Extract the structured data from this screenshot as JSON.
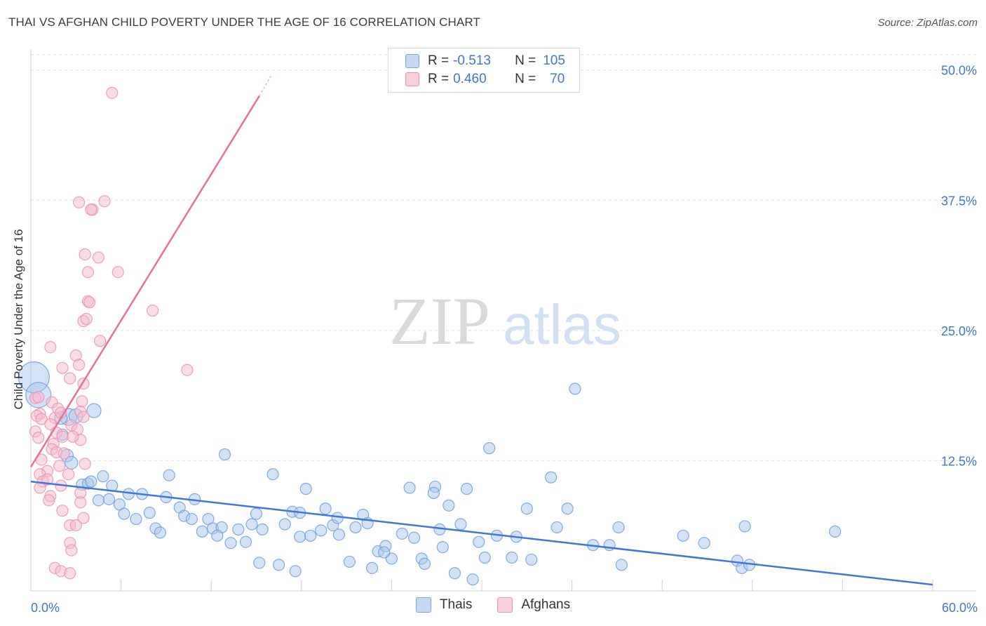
{
  "title": "THAI VS AFGHAN CHILD POVERTY UNDER THE AGE OF 16 CORRELATION CHART",
  "source": "Source: ZipAtlas.com",
  "watermark": {
    "zip": "ZIP",
    "atlas": "atlas"
  },
  "legend": {
    "rows": [
      {
        "r_label": "R =",
        "r_value": "-0.513",
        "n_label": "N =",
        "n_value": "105",
        "color": "#a9c6ee"
      },
      {
        "r_label": "R =",
        "r_value": "0.460",
        "n_label": "N =",
        "n_value": "70",
        "color": "#f6b9cd"
      }
    ]
  },
  "bottom_legend": [
    {
      "label": "Thais",
      "color": "#a9c6ee"
    },
    {
      "label": "Afghans",
      "color": "#f6b9cd"
    }
  ],
  "chart_data": {
    "type": "scatter",
    "title": "THAI VS AFGHAN CHILD POVERTY UNDER THE AGE OF 16 CORRELATION CHART",
    "xlabel": "",
    "ylabel": "Child Poverty Under the Age of 16",
    "xlim": [
      0,
      60
    ],
    "ylim": [
      0,
      52
    ],
    "x_tick_labels": [
      "0.0%",
      "60.0%"
    ],
    "y_ticks": [
      12.5,
      25.0,
      37.5,
      50.0
    ],
    "y_tick_labels": [
      "12.5%",
      "25.0%",
      "37.5%",
      "50.0%"
    ],
    "grid": true,
    "colors": {
      "thais": "#6a9fe0",
      "thais_fill": "#a9c6ee",
      "thais_line": "#3f78d6",
      "afghans": "#ee8fb0",
      "afghans_fill": "#f6b9cd",
      "afghans_line": "#e8709a",
      "axis_label": "#3f78c8"
    },
    "series": [
      {
        "name": "Thais",
        "trendline": [
          [
            0,
            10.5
          ],
          [
            60,
            0.6
          ]
        ],
        "points": [
          [
            0.2,
            20.5,
            22
          ],
          [
            0.5,
            18.8,
            18
          ],
          [
            2.5,
            16.7,
            12
          ],
          [
            3,
            16.8,
            10
          ],
          [
            2,
            16.6,
            9
          ],
          [
            4.2,
            17.3,
            10
          ],
          [
            2.1,
            15.0,
            8
          ],
          [
            2.4,
            13.0,
            9
          ],
          [
            2.7,
            12.3,
            9
          ],
          [
            3.4,
            10.2,
            8
          ],
          [
            3.8,
            10.3,
            8
          ],
          [
            4.0,
            10.5,
            8
          ],
          [
            4.8,
            11.0,
            8
          ],
          [
            5.4,
            10.1,
            8
          ],
          [
            4.5,
            8.7,
            8
          ],
          [
            5.2,
            8.8,
            8
          ],
          [
            5.9,
            8.3,
            8
          ],
          [
            6.5,
            9.3,
            8
          ],
          [
            7.4,
            9.3,
            8
          ],
          [
            6.2,
            7.4,
            8
          ],
          [
            7.0,
            6.9,
            8
          ],
          [
            7.9,
            7.5,
            8
          ],
          [
            8.3,
            6.0,
            8
          ],
          [
            8.6,
            5.6,
            8
          ],
          [
            9.2,
            11.1,
            8
          ],
          [
            9.0,
            9.0,
            8
          ],
          [
            9.9,
            8.0,
            8
          ],
          [
            10.2,
            7.2,
            8
          ],
          [
            10.7,
            6.9,
            8
          ],
          [
            10.9,
            8.8,
            8
          ],
          [
            11.4,
            5.7,
            8
          ],
          [
            11.8,
            6.9,
            8
          ],
          [
            12.1,
            6.0,
            8
          ],
          [
            12.7,
            6.1,
            8
          ],
          [
            12.4,
            5.3,
            8
          ],
          [
            12.9,
            13.1,
            8
          ],
          [
            13.3,
            4.6,
            8
          ],
          [
            13.8,
            5.9,
            8
          ],
          [
            14.3,
            4.7,
            8
          ],
          [
            14.7,
            6.4,
            8
          ],
          [
            15.0,
            7.4,
            8
          ],
          [
            15.4,
            5.9,
            8
          ],
          [
            15.2,
            2.7,
            8
          ],
          [
            16.1,
            11.2,
            8
          ],
          [
            16.5,
            2.5,
            8
          ],
          [
            16.9,
            6.4,
            8
          ],
          [
            17.4,
            7.6,
            8
          ],
          [
            17.9,
            7.5,
            8
          ],
          [
            17.6,
            1.9,
            8
          ],
          [
            17.9,
            5.2,
            8
          ],
          [
            18.3,
            9.8,
            8
          ],
          [
            18.6,
            5.3,
            8
          ],
          [
            19.3,
            5.8,
            8
          ],
          [
            19.6,
            7.9,
            8
          ],
          [
            20.1,
            6.3,
            8
          ],
          [
            20.5,
            5.4,
            8
          ],
          [
            20.4,
            7.0,
            8
          ],
          [
            21.2,
            2.8,
            8
          ],
          [
            21.6,
            6.1,
            8
          ],
          [
            22.1,
            7.3,
            8
          ],
          [
            22.4,
            6.5,
            8
          ],
          [
            22.7,
            2.2,
            8
          ],
          [
            23.1,
            3.8,
            8
          ],
          [
            23.6,
            4.3,
            8
          ],
          [
            24.0,
            3.1,
            8
          ],
          [
            23.5,
            3.7,
            8
          ],
          [
            24.7,
            5.5,
            8
          ],
          [
            25.2,
            9.9,
            8
          ],
          [
            25.5,
            5.1,
            8
          ],
          [
            26.0,
            3.1,
            8
          ],
          [
            26.2,
            2.6,
            8
          ],
          [
            26.9,
            10.0,
            8
          ],
          [
            27.2,
            5.9,
            8
          ],
          [
            27.4,
            4.2,
            8
          ],
          [
            26.8,
            9.4,
            8
          ],
          [
            27.8,
            8.2,
            8
          ],
          [
            28.2,
            1.7,
            8
          ],
          [
            28.6,
            6.4,
            8
          ],
          [
            29.0,
            9.8,
            8
          ],
          [
            29.4,
            1.1,
            8
          ],
          [
            29.8,
            4.7,
            8
          ],
          [
            30.2,
            3.2,
            8
          ],
          [
            30.5,
            13.7,
            8
          ],
          [
            31.0,
            5.3,
            8
          ],
          [
            32.0,
            3.2,
            8
          ],
          [
            32.3,
            5.2,
            8
          ],
          [
            33.3,
            3.0,
            8
          ],
          [
            33.0,
            7.9,
            8
          ],
          [
            34.6,
            10.9,
            8
          ],
          [
            35.0,
            6.1,
            8
          ],
          [
            35.7,
            7.9,
            8
          ],
          [
            36.2,
            19.4,
            8
          ],
          [
            37.4,
            4.4,
            8
          ],
          [
            38.5,
            4.4,
            8
          ],
          [
            39.1,
            6.1,
            8
          ],
          [
            39.3,
            2.5,
            8
          ],
          [
            43.4,
            5.3,
            8
          ],
          [
            44.8,
            4.6,
            8
          ],
          [
            47.0,
            2.9,
            8
          ],
          [
            47.3,
            2.2,
            8
          ],
          [
            47.5,
            6.2,
            8
          ],
          [
            47.8,
            2.5,
            8
          ],
          [
            53.5,
            5.7,
            8
          ],
          [
            30.0,
            4.0,
            0
          ]
        ]
      },
      {
        "name": "Afghans",
        "trendline": [
          [
            0,
            11.9
          ],
          [
            15.2,
            47.5
          ]
        ],
        "trendline_dashed": [
          [
            15.2,
            47.5
          ],
          [
            16.0,
            49.5
          ]
        ],
        "points": [
          [
            5.4,
            47.8,
            8
          ],
          [
            3.2,
            37.3,
            8
          ],
          [
            4.9,
            37.4,
            8
          ],
          [
            4.1,
            36.6,
            8
          ],
          [
            4.0,
            36.6,
            8
          ],
          [
            3.6,
            32.3,
            8
          ],
          [
            4.5,
            32.0,
            8
          ],
          [
            3.8,
            30.6,
            8
          ],
          [
            5.8,
            30.6,
            8
          ],
          [
            3.8,
            27.8,
            8
          ],
          [
            3.9,
            27.7,
            8
          ],
          [
            8.1,
            26.9,
            8
          ],
          [
            3.5,
            25.9,
            8
          ],
          [
            3.7,
            26.1,
            8
          ],
          [
            4.6,
            24.0,
            8
          ],
          [
            1.3,
            23.4,
            8
          ],
          [
            3.0,
            22.6,
            8
          ],
          [
            2.1,
            21.4,
            8
          ],
          [
            10.4,
            21.2,
            8
          ],
          [
            3.2,
            21.7,
            8
          ],
          [
            2.6,
            20.4,
            8
          ],
          [
            3.5,
            19.9,
            8
          ],
          [
            0.3,
            18.5,
            8
          ],
          [
            0.5,
            18.6,
            8
          ],
          [
            3.4,
            18.2,
            8
          ],
          [
            1.4,
            18.1,
            8
          ],
          [
            0.6,
            17.0,
            8
          ],
          [
            1.8,
            17.5,
            8
          ],
          [
            3.3,
            17.2,
            8
          ],
          [
            0.4,
            16.8,
            8
          ],
          [
            1.6,
            16.6,
            8
          ],
          [
            2.0,
            17.1,
            8
          ],
          [
            3.5,
            16.7,
            8
          ],
          [
            0.7,
            16.5,
            8
          ],
          [
            1.3,
            16.0,
            8
          ],
          [
            2.7,
            15.9,
            8
          ],
          [
            0.3,
            15.3,
            8
          ],
          [
            3.1,
            15.5,
            8
          ],
          [
            1.7,
            15.2,
            8
          ],
          [
            0.5,
            14.7,
            8
          ],
          [
            2.1,
            14.8,
            8
          ],
          [
            3.3,
            14.5,
            8
          ],
          [
            1.5,
            14.1,
            8
          ],
          [
            1.4,
            13.6,
            8
          ],
          [
            2.8,
            14.8,
            8
          ],
          [
            1.7,
            13.3,
            8
          ],
          [
            2.2,
            13.2,
            8
          ],
          [
            0.7,
            12.6,
            8
          ],
          [
            3.6,
            12.2,
            8
          ],
          [
            1.9,
            12.0,
            8
          ],
          [
            1.1,
            11.5,
            8
          ],
          [
            0.6,
            11.2,
            8
          ],
          [
            2.5,
            11.2,
            8
          ],
          [
            0.8,
            10.5,
            8
          ],
          [
            1.1,
            10.7,
            8
          ],
          [
            0.6,
            9.9,
            8
          ],
          [
            2.0,
            10.1,
            8
          ],
          [
            1.3,
            9.1,
            8
          ],
          [
            1.2,
            8.7,
            8
          ],
          [
            3.3,
            9.4,
            8
          ],
          [
            3.3,
            8.5,
            8
          ],
          [
            2.1,
            7.7,
            8
          ],
          [
            3.5,
            7.0,
            8
          ],
          [
            2.6,
            6.3,
            8
          ],
          [
            3.0,
            6.3,
            8
          ],
          [
            2.6,
            4.6,
            8
          ],
          [
            2.7,
            3.9,
            8
          ],
          [
            1.6,
            2.2,
            8
          ],
          [
            2.0,
            1.9,
            8
          ],
          [
            2.6,
            1.7,
            8
          ]
        ]
      }
    ]
  }
}
